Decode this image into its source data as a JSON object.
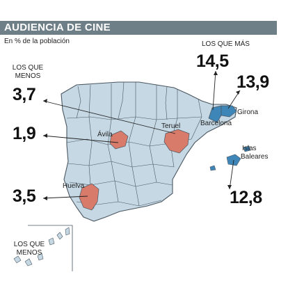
{
  "title": "AUDIENCIA DE CINE",
  "subtitle": "En % de la población",
  "legend": {
    "max_label": "LOS QUE MÁS",
    "min_label_top": "LOS QUE MENOS",
    "min_label_bottom": "LOS QUE MENOS"
  },
  "values": {
    "barcelona": "14,5",
    "girona": "13,9",
    "islas_baleares": "12,8",
    "teruel": "3,7",
    "avila": "1,9",
    "huelva": "3,5"
  },
  "places": {
    "girona": "Girona",
    "barcelona": "Barcelona",
    "islas_baleares_line1": "Islas",
    "islas_baleares_line2": "Baleares",
    "teruel": "Teruel",
    "avila": "Ávila",
    "huelva": "Huelva"
  },
  "colors": {
    "land": "#c5d8e4",
    "max": "#3f86b8",
    "min": "#d87b6a",
    "border": "#4a5660",
    "bar": "#6e7f88"
  }
}
